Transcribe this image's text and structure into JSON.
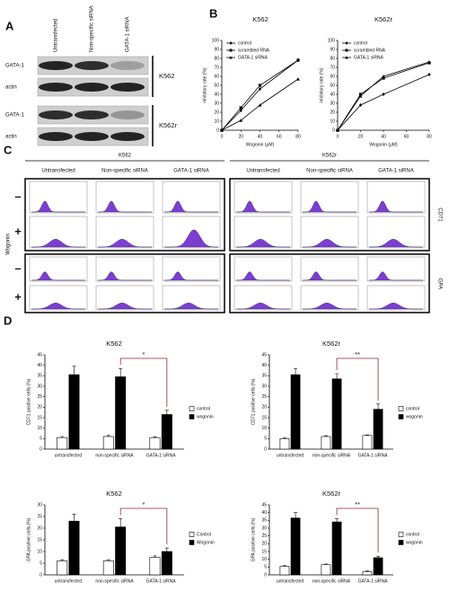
{
  "panels": [
    "A",
    "B",
    "C",
    "D"
  ],
  "blot": {
    "columns": [
      "Untransfected",
      "Non-specific siRNA",
      "GATA-1 siRNA"
    ],
    "rows": [
      "GATA-1",
      "actin",
      "GATA-1",
      "actin"
    ],
    "cell_lines": [
      "K562",
      "K562r"
    ]
  },
  "flow": {
    "groups": [
      {
        "name": "K562",
        "columns": [
          "Untransfected",
          "Non-specific siRNA",
          "GATA-1 siRNA"
        ]
      },
      {
        "name": "K562r",
        "columns": [
          "Untransfected",
          "Non-specific siRNA",
          "GATA-1 siRNA"
        ]
      }
    ],
    "treatment": "Wogonin",
    "signs": [
      "–",
      "+",
      "–",
      "+"
    ],
    "markers": [
      "CD71",
      "GPA"
    ]
  },
  "chart_data": [
    {
      "type": "line",
      "title": "K562",
      "x_label": "Wogonin (μM)",
      "y_label": "inhibitory rate (%)",
      "x": [
        0,
        20,
        40,
        80
      ],
      "xlim": [
        0,
        80
      ],
      "xticks": [
        0,
        20,
        40,
        60,
        80
      ],
      "ylim": [
        0,
        100
      ],
      "yticks": [
        0,
        10,
        20,
        30,
        40,
        50,
        60,
        70,
        80,
        90,
        100
      ],
      "legend": "upper left",
      "series": [
        {
          "name": "control",
          "color": "#000000",
          "marker": "diamond",
          "values": [
            0,
            22,
            46,
            78
          ]
        },
        {
          "name": "scrambled RNA",
          "color": "#000000",
          "marker": "square",
          "values": [
            0,
            25,
            50,
            78
          ]
        },
        {
          "name": "GATA-1 siRNA",
          "color": "#000000",
          "marker": "triangle",
          "values": [
            0,
            11,
            28,
            57
          ]
        }
      ]
    },
    {
      "type": "line",
      "title": "K562r",
      "x_label": "Wogonin (μM)",
      "y_label": "inhibitory rate (%)",
      "x": [
        0,
        20,
        40,
        80
      ],
      "xlim": [
        0,
        80
      ],
      "xticks": [
        0,
        20,
        40,
        60,
        80
      ],
      "ylim": [
        0,
        100
      ],
      "yticks": [
        0,
        10,
        20,
        30,
        40,
        50,
        60,
        70,
        80,
        90,
        100
      ],
      "legend": "upper left",
      "series": [
        {
          "name": "control",
          "color": "#000000",
          "marker": "diamond",
          "values": [
            0,
            28,
            40,
            62
          ]
        },
        {
          "name": "scrambled RNA",
          "color": "#000000",
          "marker": "square",
          "values": [
            0,
            40,
            58,
            75
          ]
        },
        {
          "name": "GATA-1 siRNA",
          "color": "#000000",
          "marker": "triangle",
          "values": [
            0,
            38,
            60,
            76
          ]
        }
      ]
    },
    {
      "type": "bar",
      "title": "K562",
      "y_label": "CD71 positive cells (%)",
      "categories": [
        "untransfected",
        "non-specific siRNA",
        "GATA-1 siRNA"
      ],
      "ylim": [
        0,
        45
      ],
      "yticks": [
        0,
        5,
        10,
        15,
        20,
        25,
        30,
        35,
        40,
        45
      ],
      "annotation": "*",
      "series": [
        {
          "name": "control",
          "color": "#ffffff",
          "values": [
            5.5,
            6,
            5.5
          ],
          "errors": [
            0.5,
            0.5,
            0.4
          ]
        },
        {
          "name": "wogonin",
          "color": "#000000",
          "values": [
            35.5,
            34.5,
            16.5
          ],
          "errors": [
            4,
            4,
            2
          ]
        }
      ]
    },
    {
      "type": "bar",
      "title": "K562r",
      "y_label": "CD71 positive cells (%)",
      "categories": [
        "untransfected",
        "non-specific siRNA",
        "GATA-1 siRNA"
      ],
      "ylim": [
        0,
        45
      ],
      "yticks": [
        0,
        5,
        10,
        15,
        20,
        25,
        30,
        35,
        40,
        45
      ],
      "annotation": "**",
      "series": [
        {
          "name": "control",
          "color": "#ffffff",
          "values": [
            5,
            6,
            6.5
          ],
          "errors": [
            0.5,
            0.4,
            0.3
          ]
        },
        {
          "name": "wogonin",
          "color": "#000000",
          "values": [
            35.5,
            33.5,
            19
          ],
          "errors": [
            3,
            2.5,
            2.5
          ]
        }
      ]
    },
    {
      "type": "bar",
      "title": "K562",
      "y_label": "GPA positive cells (%)",
      "categories": [
        "untransfected",
        "non-specific siRNA",
        "GATA-1 siRNA"
      ],
      "ylim": [
        0,
        30
      ],
      "yticks": [
        0,
        5,
        10,
        15,
        20,
        25,
        30
      ],
      "annotation": "*",
      "series": [
        {
          "name": "Control",
          "color": "#ffffff",
          "values": [
            6,
            6,
            7.5
          ],
          "errors": [
            0.5,
            0.5,
            0.6
          ]
        },
        {
          "name": "Wogonin",
          "color": "#000000",
          "values": [
            23,
            20.5,
            10
          ],
          "errors": [
            3,
            3.5,
            1.5
          ]
        }
      ]
    },
    {
      "type": "bar",
      "title": "K562r",
      "y_label": "GPA positive cells (%)",
      "categories": [
        "untransfected",
        "non-specific siRNA",
        "GATA-1 siRNA"
      ],
      "ylim": [
        0,
        45
      ],
      "yticks": [
        0,
        5,
        10,
        15,
        20,
        25,
        30,
        35,
        40,
        45
      ],
      "annotation": "**",
      "series": [
        {
          "name": "control",
          "color": "#ffffff",
          "values": [
            5.5,
            6.5,
            2
          ],
          "errors": [
            0.4,
            0.5,
            0.5
          ]
        },
        {
          "name": "wogonin",
          "color": "#000000",
          "values": [
            36.5,
            34,
            11
          ],
          "errors": [
            3.5,
            2,
            1
          ]
        }
      ]
    }
  ]
}
